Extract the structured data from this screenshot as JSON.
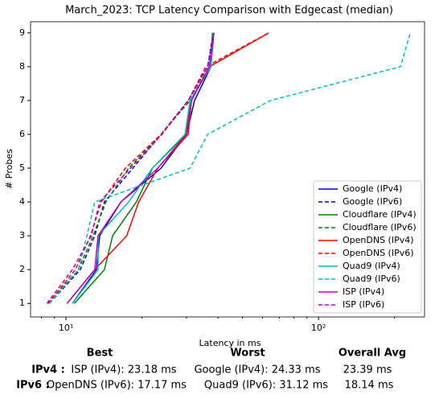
{
  "chart_data": {
    "type": "line",
    "title": "March_2023: TCP Latency Comparison with Edgecast (median)",
    "xlabel": "Latency in ms",
    "ylabel": "# Probes",
    "xscale": "log",
    "xlim": [
      7.24,
      263
    ],
    "ylim": [
      0.6,
      9.33
    ],
    "xticks": [
      {
        "value": 10,
        "label": "10¹"
      },
      {
        "value": 100,
        "label": "10²"
      }
    ],
    "xminor_ticks": [
      8,
      9,
      20,
      30,
      40,
      50,
      60,
      70,
      80,
      90,
      200
    ],
    "yticks": [
      1,
      2,
      3,
      4,
      5,
      6,
      7,
      8,
      9
    ],
    "legend": "lower right",
    "series": [
      {
        "name": "Google (IPv4)",
        "color": "#0000cc",
        "dashed": false,
        "x": [
          10.6,
          13.2,
          13.6,
          16.5,
          23.8,
          30,
          32.3,
          37.5,
          38.5
        ],
        "values": [
          1,
          2,
          3,
          4,
          5,
          6,
          7,
          8,
          9
        ]
      },
      {
        "name": "Google (IPv6)",
        "color": "#0000cc",
        "dashed": true,
        "x": [
          8.6,
          11.4,
          13,
          14.2,
          18.4,
          23.8,
          30.5,
          36.4,
          38.3
        ],
        "values": [
          1,
          2,
          3,
          4,
          5,
          6,
          7,
          8,
          9
        ]
      },
      {
        "name": "Cloudflare (IPv4)",
        "color": "#008000",
        "dashed": false,
        "x": [
          10.8,
          14.2,
          15.3,
          19,
          22,
          30,
          31,
          37.5,
          38
        ],
        "values": [
          1,
          2,
          3,
          4,
          5,
          6,
          7,
          8,
          9
        ]
      },
      {
        "name": "Cloudflare (IPv6)",
        "color": "#008000",
        "dashed": true,
        "x": [
          8.5,
          11.2,
          12.8,
          14.4,
          17.7,
          23.8,
          31,
          37,
          38.3
        ],
        "values": [
          1,
          2,
          3,
          4,
          5,
          6,
          7,
          8,
          9
        ]
      },
      {
        "name": "OpenDNS (IPv4)",
        "color": "#ff0000",
        "dashed": false,
        "x": [
          10.1,
          13,
          17.4,
          19.4,
          23.1,
          30,
          31.4,
          37,
          63.5
        ],
        "values": [
          1,
          2,
          3,
          4,
          5,
          6,
          7,
          8,
          9
        ]
      },
      {
        "name": "OpenDNS (IPv6)",
        "color": "#ff0000",
        "dashed": true,
        "x": [
          8.5,
          10.9,
          12.5,
          13.8,
          17.2,
          23.8,
          30.5,
          35.8,
          63.5
        ],
        "values": [
          1,
          2,
          3,
          4,
          5,
          6,
          7,
          8,
          9
        ]
      },
      {
        "name": "Quad9 (IPv4)",
        "color": "#00bfbf",
        "dashed": false,
        "x": [
          10.6,
          13.4,
          13.4,
          17.7,
          22,
          29.6,
          31,
          37.5,
          38.3
        ],
        "values": [
          1,
          2,
          3,
          4,
          5,
          6,
          7,
          8,
          9
        ]
      },
      {
        "name": "Quad9 (IPv6)",
        "color": "#00bfbf",
        "dashed": true,
        "x": [
          8.6,
          11.2,
          12.1,
          13,
          31,
          36.4,
          64.5,
          211,
          231
        ],
        "values": [
          1,
          2,
          3,
          4,
          5,
          6,
          7,
          8,
          9
        ]
      },
      {
        "name": "ISP (IPv4)",
        "color": "#bf00bf",
        "dashed": false,
        "x": [
          10.1,
          13,
          13.4,
          16.5,
          23.1,
          30.5,
          31.4,
          37,
          38.5
        ],
        "values": [
          1,
          2,
          3,
          4,
          5,
          6,
          7,
          8,
          9
        ]
      },
      {
        "name": "ISP (IPv6)",
        "color": "#bf00bf",
        "dashed": true,
        "x": [
          8.4,
          10.6,
          12.6,
          13.6,
          18,
          24,
          30.5,
          36.4,
          38.5
        ],
        "values": [
          1,
          2,
          3,
          4,
          5,
          6,
          7,
          8,
          9
        ]
      }
    ]
  },
  "summary": {
    "headers": [
      "Best",
      "Worst",
      "Overall Avg"
    ],
    "rows": [
      {
        "label": "IPv4 :",
        "cells": [
          "ISP (IPv4): 23.18 ms",
          "Google (IPv4): 24.33 ms",
          "23.39 ms"
        ]
      },
      {
        "label": "IPv6 :",
        "cells": [
          "OpenDNS (IPv6): 17.17 ms",
          "Quad9 (IPv6): 31.12 ms",
          "18.14 ms"
        ]
      }
    ]
  }
}
